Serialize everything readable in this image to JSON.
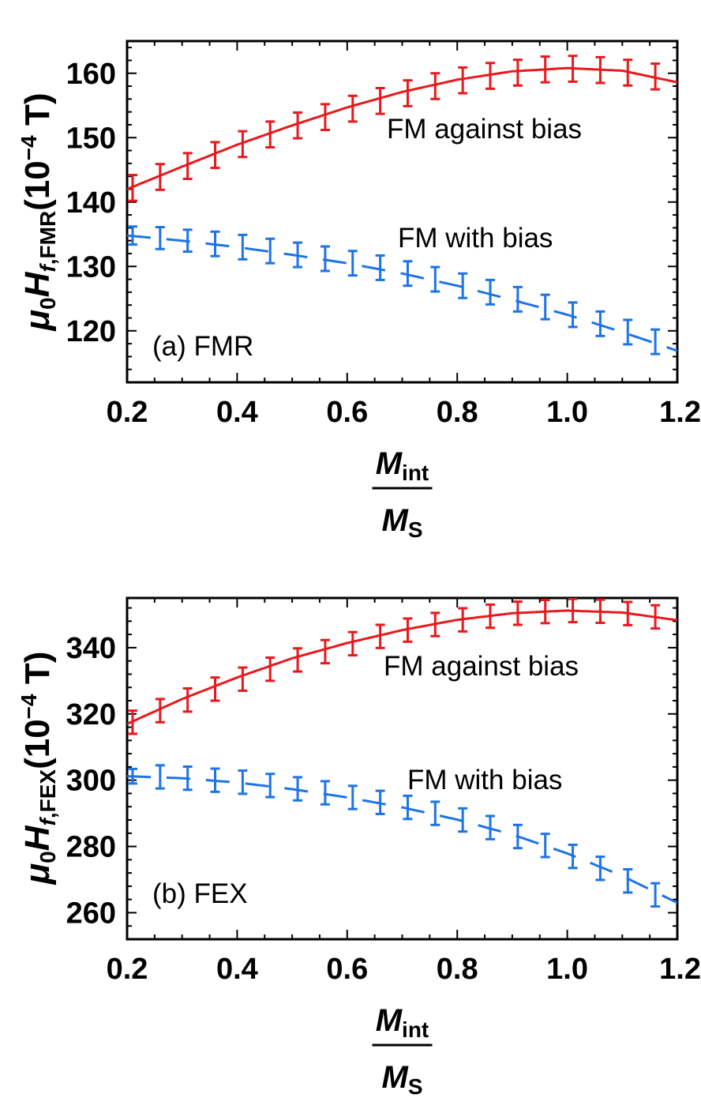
{
  "colors": {
    "against_series": "#e8191c",
    "with_series": "#1e73e6",
    "axes": "#000000"
  },
  "chart_data": [
    {
      "type": "line",
      "panel_label": "(a) FMR",
      "ylabel": {
        "mu": "μ",
        "mu_sub": "0",
        "H": "H",
        "H_sub_italic": "f",
        "H_sub_rest": ",FMR",
        "unit_open": "(10",
        "unit_exp": "−4",
        "unit_close": " T)"
      },
      "xlabel": {
        "numerator": "M",
        "numerator_sub": "int",
        "denominator": "M",
        "denominator_sub": "S"
      },
      "xlim": [
        0.2,
        1.2
      ],
      "ylim": [
        112,
        165
      ],
      "x_ticks": [
        "0.2",
        "0.4",
        "0.6",
        "0.8",
        "1.0",
        "1.2"
      ],
      "y_ticks": [
        "120",
        "130",
        "140",
        "150",
        "160"
      ],
      "series": [
        {
          "name": "FM against bias",
          "style": "solid",
          "curve_x": [
            0.2,
            0.3,
            0.4,
            0.5,
            0.6,
            0.7,
            0.8,
            0.9,
            1.0,
            1.1,
            1.2
          ],
          "curve_y": [
            142.0,
            145.5,
            148.9,
            151.9,
            154.7,
            157.1,
            159.0,
            160.3,
            160.8,
            160.4,
            158.6
          ],
          "points": [
            {
              "x": 0.21,
              "y": 142.2,
              "err": 2.0
            },
            {
              "x": 0.26,
              "y": 143.9,
              "err": 2.0
            },
            {
              "x": 0.31,
              "y": 145.6,
              "err": 2.0
            },
            {
              "x": 0.36,
              "y": 147.3,
              "err": 2.0
            },
            {
              "x": 0.41,
              "y": 149.0,
              "err": 2.0
            },
            {
              "x": 0.46,
              "y": 150.5,
              "err": 2.0
            },
            {
              "x": 0.51,
              "y": 151.9,
              "err": 2.0
            },
            {
              "x": 0.56,
              "y": 153.2,
              "err": 2.0
            },
            {
              "x": 0.61,
              "y": 154.5,
              "err": 2.0
            },
            {
              "x": 0.66,
              "y": 155.7,
              "err": 2.0
            },
            {
              "x": 0.71,
              "y": 156.9,
              "err": 2.0
            },
            {
              "x": 0.76,
              "y": 158.0,
              "err": 2.0
            },
            {
              "x": 0.81,
              "y": 158.9,
              "err": 2.0
            },
            {
              "x": 0.86,
              "y": 159.6,
              "err": 2.0
            },
            {
              "x": 0.91,
              "y": 160.1,
              "err": 2.0
            },
            {
              "x": 0.96,
              "y": 160.6,
              "err": 2.0
            },
            {
              "x": 1.01,
              "y": 160.7,
              "err": 2.0
            },
            {
              "x": 1.06,
              "y": 160.5,
              "err": 2.0
            },
            {
              "x": 1.11,
              "y": 160.1,
              "err": 2.0
            },
            {
              "x": 1.16,
              "y": 159.5,
              "err": 2.0
            }
          ]
        },
        {
          "name": "FM with bias",
          "style": "dashed",
          "curve_x": [
            0.2,
            0.3,
            0.4,
            0.5,
            0.6,
            0.7,
            0.8,
            0.9,
            1.0,
            1.1,
            1.2
          ],
          "curve_y": [
            134.8,
            134.0,
            133.0,
            131.8,
            130.5,
            128.9,
            127.0,
            124.8,
            122.5,
            119.8,
            116.9
          ],
          "points": [
            {
              "x": 0.21,
              "y": 134.8,
              "err": 1.4
            },
            {
              "x": 0.26,
              "y": 134.4,
              "err": 1.7
            },
            {
              "x": 0.31,
              "y": 134.0,
              "err": 1.7
            },
            {
              "x": 0.36,
              "y": 133.5,
              "err": 1.9
            },
            {
              "x": 0.41,
              "y": 133.0,
              "err": 1.9
            },
            {
              "x": 0.46,
              "y": 132.4,
              "err": 1.9
            },
            {
              "x": 0.51,
              "y": 131.8,
              "err": 1.9
            },
            {
              "x": 0.56,
              "y": 131.2,
              "err": 1.9
            },
            {
              "x": 0.61,
              "y": 130.5,
              "err": 1.9
            },
            {
              "x": 0.66,
              "y": 129.8,
              "err": 1.9
            },
            {
              "x": 0.71,
              "y": 128.9,
              "err": 1.9
            },
            {
              "x": 0.76,
              "y": 128.0,
              "err": 1.9
            },
            {
              "x": 0.81,
              "y": 127.0,
              "err": 1.9
            },
            {
              "x": 0.86,
              "y": 126.0,
              "err": 1.9
            },
            {
              "x": 0.91,
              "y": 124.9,
              "err": 1.9
            },
            {
              "x": 0.96,
              "y": 123.7,
              "err": 1.9
            },
            {
              "x": 1.01,
              "y": 122.5,
              "err": 1.9
            },
            {
              "x": 1.06,
              "y": 121.1,
              "err": 1.9
            },
            {
              "x": 1.11,
              "y": 119.8,
              "err": 1.9
            },
            {
              "x": 1.16,
              "y": 118.3,
              "err": 1.9
            }
          ]
        }
      ]
    },
    {
      "type": "line",
      "panel_label": "(b) FEX",
      "ylabel": {
        "mu": "μ",
        "mu_sub": "0",
        "H": "H",
        "H_sub_italic": "f",
        "H_sub_rest": ",FEX",
        "unit_open": "(10",
        "unit_exp": "−4",
        "unit_close": " T)"
      },
      "xlabel": {
        "numerator": "M",
        "numerator_sub": "int",
        "denominator": "M",
        "denominator_sub": "S"
      },
      "xlim": [
        0.2,
        1.2
      ],
      "ylim": [
        252,
        355
      ],
      "x_ticks": [
        "0.2",
        "0.4",
        "0.6",
        "0.8",
        "1.0",
        "1.2"
      ],
      "y_ticks": [
        "260",
        "280",
        "300",
        "320",
        "340"
      ],
      "series": [
        {
          "name": "FM against bias",
          "style": "solid",
          "curve_x": [
            0.2,
            0.3,
            0.4,
            0.5,
            0.6,
            0.7,
            0.8,
            0.9,
            1.0,
            1.1,
            1.2
          ],
          "curve_y": [
            317.0,
            324.5,
            331.0,
            336.8,
            341.4,
            345.3,
            348.4,
            350.4,
            351.2,
            350.6,
            348.3
          ],
          "points": [
            {
              "x": 0.21,
              "y": 317.5,
              "err": 3.5
            },
            {
              "x": 0.26,
              "y": 321.0,
              "err": 3.5
            },
            {
              "x": 0.31,
              "y": 324.2,
              "err": 3.5
            },
            {
              "x": 0.36,
              "y": 327.5,
              "err": 3.5
            },
            {
              "x": 0.41,
              "y": 330.5,
              "err": 3.5
            },
            {
              "x": 0.46,
              "y": 333.5,
              "err": 3.5
            },
            {
              "x": 0.51,
              "y": 336.3,
              "err": 3.5
            },
            {
              "x": 0.56,
              "y": 338.8,
              "err": 3.5
            },
            {
              "x": 0.61,
              "y": 341.2,
              "err": 3.5
            },
            {
              "x": 0.66,
              "y": 343.4,
              "err": 3.5
            },
            {
              "x": 0.71,
              "y": 345.3,
              "err": 3.5
            },
            {
              "x": 0.76,
              "y": 347.0,
              "err": 3.5
            },
            {
              "x": 0.81,
              "y": 348.4,
              "err": 3.5
            },
            {
              "x": 0.86,
              "y": 349.5,
              "err": 3.5
            },
            {
              "x": 0.91,
              "y": 350.4,
              "err": 3.5
            },
            {
              "x": 0.96,
              "y": 350.9,
              "err": 3.5
            },
            {
              "x": 1.01,
              "y": 351.2,
              "err": 3.5
            },
            {
              "x": 1.06,
              "y": 351.0,
              "err": 3.5
            },
            {
              "x": 1.11,
              "y": 350.3,
              "err": 3.5
            },
            {
              "x": 1.16,
              "y": 349.3,
              "err": 3.5
            }
          ]
        },
        {
          "name": "FM with bias",
          "style": "dashed",
          "curve_x": [
            0.2,
            0.3,
            0.4,
            0.5,
            0.6,
            0.7,
            0.8,
            0.9,
            1.0,
            1.1,
            1.2
          ],
          "curve_y": [
            301.2,
            300.6,
            299.3,
            297.3,
            294.8,
            291.8,
            288.1,
            283.6,
            277.9,
            271.1,
            263.0
          ],
          "points": [
            {
              "x": 0.21,
              "y": 301.2,
              "err": 2.2
            },
            {
              "x": 0.26,
              "y": 301.0,
              "err": 3.5
            },
            {
              "x": 0.31,
              "y": 300.6,
              "err": 3.5
            },
            {
              "x": 0.36,
              "y": 300.0,
              "err": 3.5
            },
            {
              "x": 0.41,
              "y": 299.4,
              "err": 3.5
            },
            {
              "x": 0.46,
              "y": 298.4,
              "err": 3.5
            },
            {
              "x": 0.51,
              "y": 297.4,
              "err": 3.5
            },
            {
              "x": 0.56,
              "y": 296.2,
              "err": 3.5
            },
            {
              "x": 0.61,
              "y": 294.8,
              "err": 3.5
            },
            {
              "x": 0.66,
              "y": 293.3,
              "err": 3.5
            },
            {
              "x": 0.71,
              "y": 291.8,
              "err": 3.5
            },
            {
              "x": 0.76,
              "y": 290.0,
              "err": 3.5
            },
            {
              "x": 0.81,
              "y": 288.0,
              "err": 3.5
            },
            {
              "x": 0.86,
              "y": 285.7,
              "err": 3.5
            },
            {
              "x": 0.91,
              "y": 283.0,
              "err": 3.5
            },
            {
              "x": 0.96,
              "y": 280.3,
              "err": 3.5
            },
            {
              "x": 1.01,
              "y": 277.0,
              "err": 3.5
            },
            {
              "x": 1.06,
              "y": 273.4,
              "err": 3.5
            },
            {
              "x": 1.11,
              "y": 269.6,
              "err": 3.5
            },
            {
              "x": 1.16,
              "y": 265.4,
              "err": 3.5
            }
          ]
        }
      ]
    }
  ]
}
